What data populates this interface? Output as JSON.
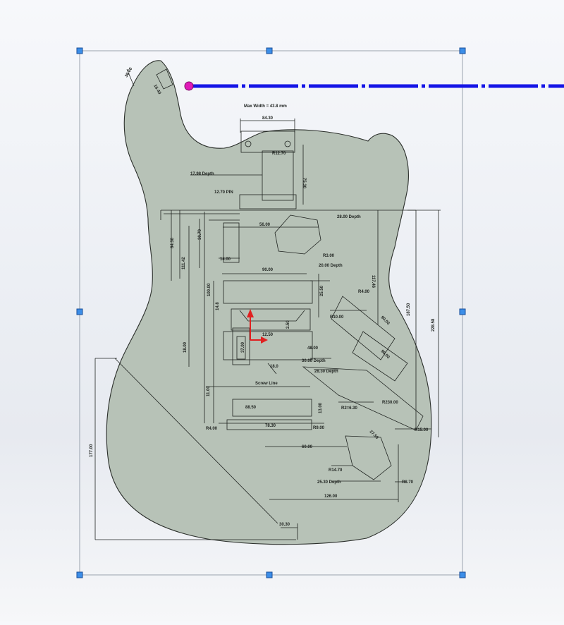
{
  "viewport": {
    "background_top": "#f7f8fb",
    "background_bottom": "#e7eaf0"
  },
  "colors": {
    "body_fill": "#b7c2b7",
    "outline": "#2b2f2b",
    "dimension": "#1f2320",
    "handle": "#3c8ee8",
    "handle_border": "#1a4f99",
    "frame": "#9aa3ae",
    "axis_line": "#1414e6",
    "axis_end": "#e01ab8",
    "triad_x": "#e02020",
    "triad_y": "#e02020"
  },
  "icons": {
    "origin_triad": "coordinate-triad-icon",
    "handle": "resize-handle-icon"
  },
  "dims": {
    "max_width": "Max Width = 43.8 mm",
    "d_84_30": "84.30",
    "r_12_70": "R12.70",
    "d_17_98_depth": "17.98 Depth",
    "d_75_30": "75.30",
    "d_pin": "12.70 PIN",
    "d_28_depth": "28.00 Depth",
    "d_56_00": "56.00",
    "d_30_70": "30.70",
    "d_64_30": "64.30",
    "d_111_42": "111.42",
    "d_14_00": "14.00",
    "r_3_00": "R3.00",
    "d_20_depth": "20.00 Depth",
    "d_90_00": "90.00",
    "d_100_00": "100.00",
    "d_14_8": "14.8",
    "d_25_50": "25.50",
    "r_4_00": "R4.00",
    "d_117_46": "117.46",
    "d_187_50": "187.50",
    "d_228_58": "228.58",
    "r_10_00": "R10.00",
    "d_90_r": "90.00",
    "d_18_00": "18.00",
    "d_2_50": "2.50",
    "d_12_50": "12.50",
    "d_48_00": "48.00",
    "d_37_00": "37.00",
    "d_30_depth": "30.00 Depth",
    "d_96_00": "96.00",
    "d_28_30_depth": "28.30 Depth",
    "d_18_0": "18.0",
    "screw_line": "Screw Line",
    "d_11_00": "11.00",
    "r_230_00": "R230.00",
    "d_88_50": "88.50",
    "d_13_00": "13.00",
    "r2_6_30": "R2=6.30",
    "r_4_00b": "R4.00",
    "d_78_30": "78.30",
    "r_9_00": "R9.00",
    "r_15_00": "R15.00",
    "d_60_00": "60.00",
    "d_27_50": "27.50",
    "r_14_70": "R14.70",
    "d_25_30_depth": "25.30 Depth",
    "r_8_70": "R8.70",
    "d_126_00": "126.00",
    "d_177_00": "177.00",
    "d_30_30": "30.30",
    "d_36_00": "36.00",
    "d_16_40": "16.40"
  }
}
